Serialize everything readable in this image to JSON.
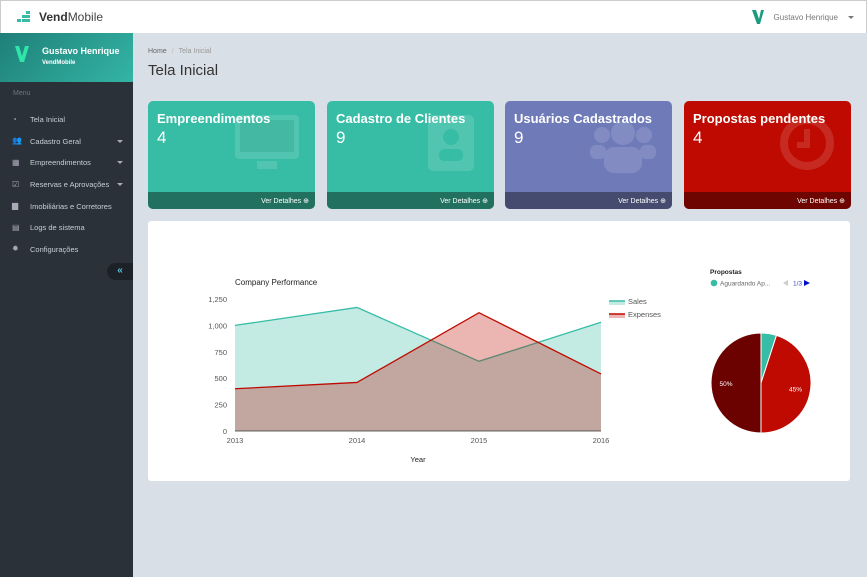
{
  "header": {
    "brand_bold": "Vend",
    "brand_rest": "Mobile",
    "user": "Gustavo Henrique"
  },
  "sidebar": {
    "profile_name": "Gustavo Henrique",
    "profile_company": "VendMobile",
    "menu_heading": "Menu",
    "items": [
      {
        "label": "Tela Inicial",
        "icon": "dashboard-icon",
        "dropdown": false
      },
      {
        "label": "Cadastro Geral",
        "icon": "users-icon",
        "dropdown": true
      },
      {
        "label": "Empreendimentos",
        "icon": "calculator-icon",
        "dropdown": true
      },
      {
        "label": "Reservas e Aprovações",
        "icon": "check-square-icon",
        "dropdown": true
      },
      {
        "label": "Imobiliárias e Corretores",
        "icon": "briefcase-icon",
        "dropdown": false
      },
      {
        "label": "Logs de sistema",
        "icon": "book-icon",
        "dropdown": false
      },
      {
        "label": "Configurações",
        "icon": "gear-icon",
        "dropdown": false
      }
    ],
    "collapse_label": "«"
  },
  "breadcrumb": {
    "home": "Home",
    "current": "Tela Inicial"
  },
  "page_title": "Tela Inicial",
  "cards": [
    {
      "title": "Empreendimentos",
      "value": "4",
      "link": "Ver Detalhes",
      "color": "#37bda5",
      "footer": "#22705f",
      "icon": "monitor-icon"
    },
    {
      "title": "Cadastro de Clientes",
      "value": "9",
      "link": "Ver Detalhes",
      "color": "#37bda5",
      "footer": "#22705f",
      "icon": "address-book-icon"
    },
    {
      "title": "Usuários Cadastrados",
      "value": "9",
      "link": "Ver Detalhes",
      "color": "#6f7bb9",
      "footer": "#454b6e",
      "icon": "users-icon"
    },
    {
      "title": "Propostas pendentes",
      "value": "4",
      "link": "Ver Detalhes",
      "color": "#be0a00",
      "footer": "#6e0500",
      "icon": "clock-icon"
    }
  ],
  "chart_data": [
    {
      "type": "area",
      "title": "Company Performance",
      "xlabel": "Year",
      "ylabel": "",
      "categories": [
        "2013",
        "2014",
        "2015",
        "2016"
      ],
      "ylim": [
        0,
        1250
      ],
      "yticks": [
        "0",
        "250",
        "500",
        "750",
        "1,000",
        "1,250"
      ],
      "series": [
        {
          "name": "Sales",
          "values": [
            1000,
            1170,
            660,
            1030
          ],
          "color": "#37bda5"
        },
        {
          "name": "Expenses",
          "values": [
            400,
            460,
            1120,
            540
          ],
          "color": "#be0a00"
        }
      ],
      "legend": "right",
      "grid": false
    },
    {
      "type": "pie",
      "title": "Propostas",
      "legend_entry": "Aguardando Ap...",
      "legend_page": "1/3",
      "slices": [
        {
          "value": 5,
          "color": "#37bda5",
          "label": ""
        },
        {
          "value": 45,
          "color": "#be0a00",
          "label": "45%"
        },
        {
          "value": 50,
          "color": "#6b0200",
          "label": "50%"
        }
      ]
    }
  ]
}
